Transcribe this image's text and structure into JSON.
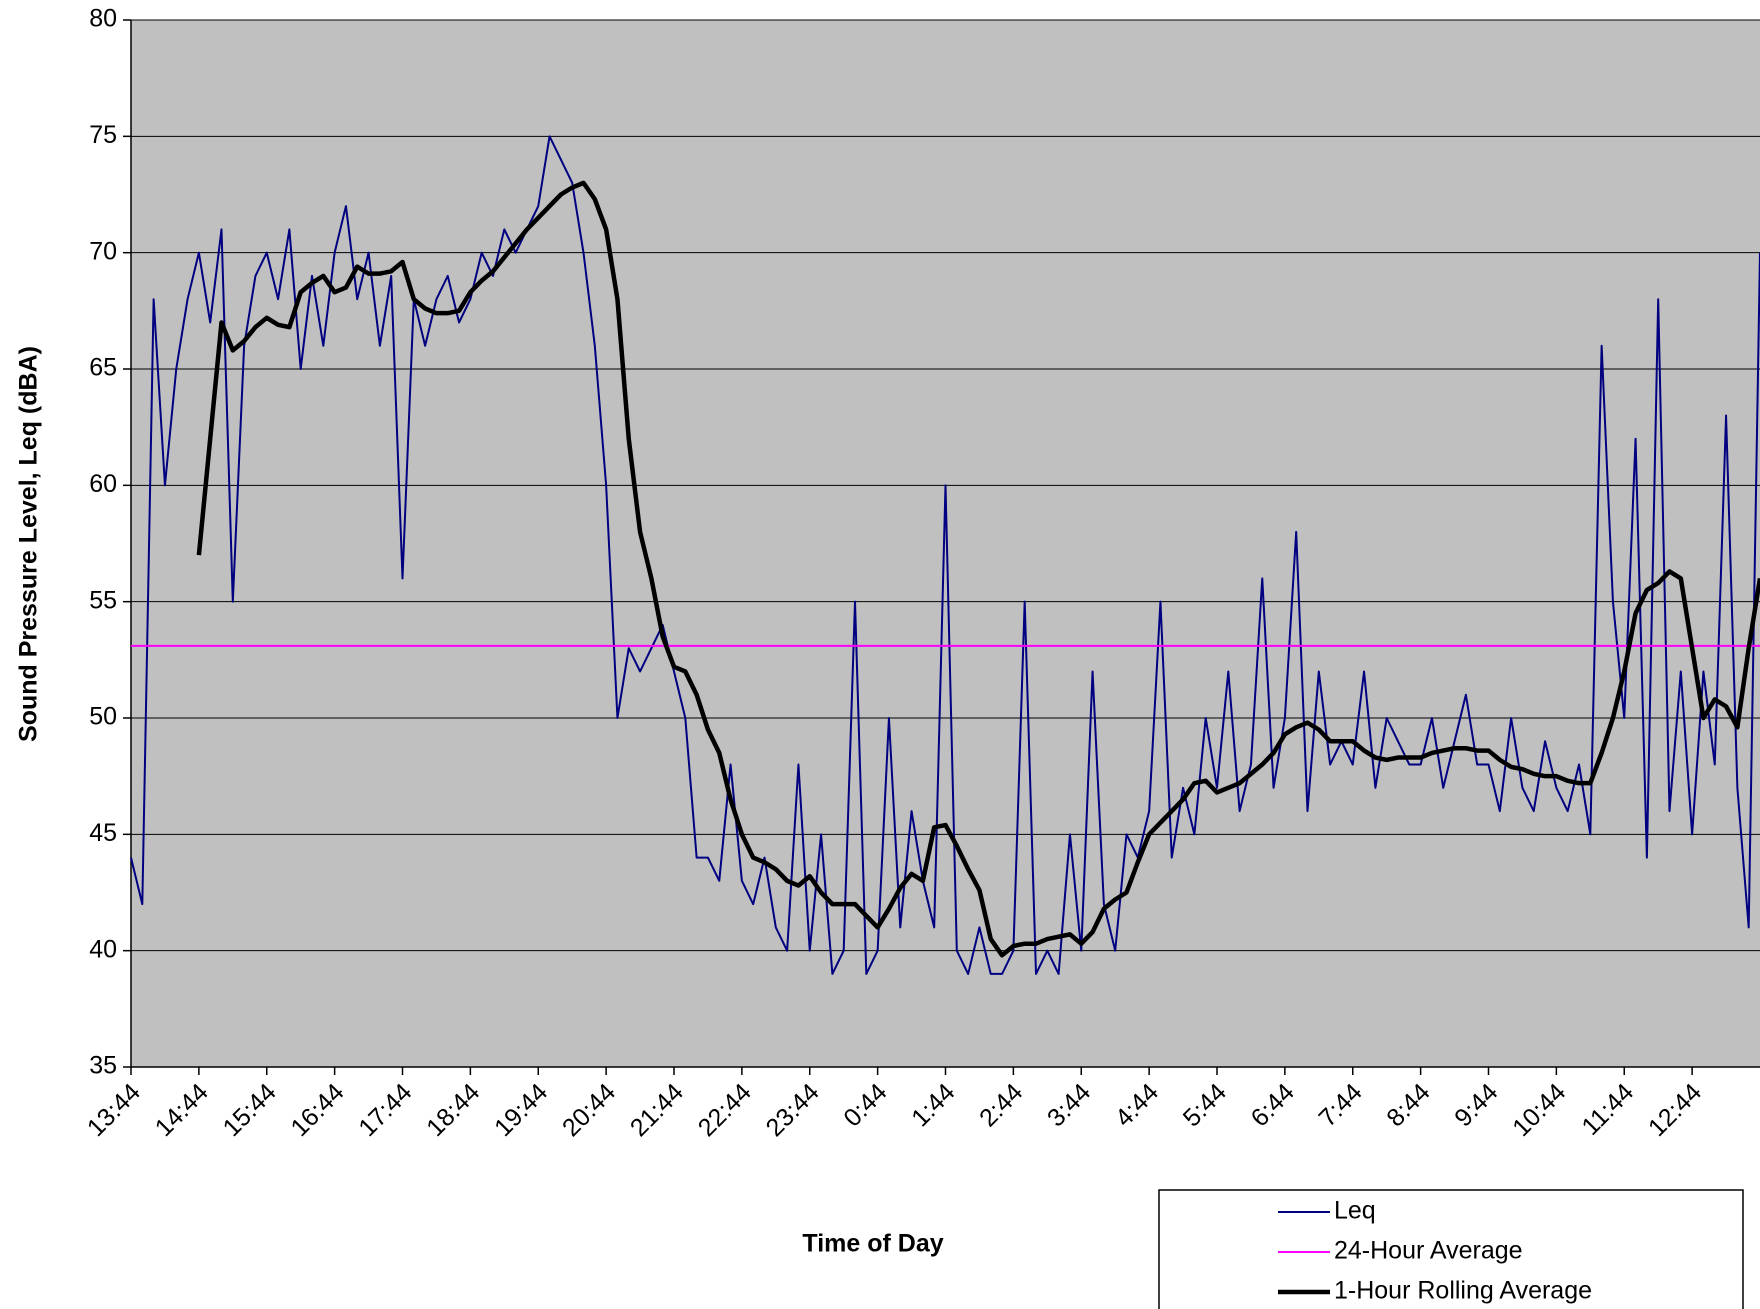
{
  "chart_data": {
    "type": "line",
    "x_label": "Time of Day",
    "y_label": "Sound Pressure Level, Leq (dBA)",
    "categories": [
      "13:44",
      null,
      null,
      null,
      null,
      null,
      "14:44",
      null,
      null,
      null,
      null,
      null,
      "15:44",
      null,
      null,
      null,
      null,
      null,
      "16:44",
      null,
      null,
      null,
      null,
      null,
      "17:44",
      null,
      null,
      null,
      null,
      null,
      "18:44",
      null,
      null,
      null,
      null,
      null,
      "19:44",
      null,
      null,
      null,
      null,
      null,
      "20:44",
      null,
      null,
      null,
      null,
      null,
      "21:44",
      null,
      null,
      null,
      null,
      null,
      "22:44",
      null,
      null,
      null,
      null,
      null,
      "23:44",
      null,
      null,
      null,
      null,
      null,
      "0:44",
      null,
      null,
      null,
      null,
      null,
      "1:44",
      null,
      null,
      null,
      null,
      null,
      "2:44",
      null,
      null,
      null,
      null,
      null,
      "3:44",
      null,
      null,
      null,
      null,
      null,
      "4:44",
      null,
      null,
      null,
      null,
      null,
      "5:44",
      null,
      null,
      null,
      null,
      null,
      "6:44",
      null,
      null,
      null,
      null,
      null,
      "7:44",
      null,
      null,
      null,
      null,
      null,
      "8:44",
      null,
      null,
      null,
      null,
      null,
      "9:44",
      null,
      null,
      null,
      null,
      null,
      "10:44",
      null,
      null,
      null,
      null,
      null,
      "11:44",
      null,
      null,
      null,
      null,
      null,
      "12:44",
      null,
      null,
      null,
      null,
      null,
      null
    ],
    "series": [
      {
        "name": "Leq",
        "color": "#000080",
        "width": 2,
        "values": [
          44,
          42,
          68,
          60,
          65,
          68,
          70,
          67,
          71,
          55,
          66,
          69,
          70,
          68,
          71,
          65,
          69,
          66,
          70,
          72,
          68,
          70,
          66,
          69,
          56,
          68,
          66,
          68,
          69,
          67,
          68,
          70,
          69,
          71,
          70,
          71,
          72,
          75,
          74,
          73,
          70,
          66,
          60,
          50,
          53,
          52,
          53,
          54,
          52,
          50,
          44,
          44,
          43,
          48,
          43,
          42,
          44,
          41,
          40,
          48,
          40,
          45,
          39,
          40,
          55,
          39,
          40,
          50,
          41,
          46,
          43,
          41,
          60,
          40,
          39,
          41,
          39,
          39,
          40,
          55,
          39,
          40,
          39,
          45,
          40,
          52,
          42,
          40,
          45,
          44,
          46,
          55,
          44,
          47,
          45,
          50,
          47,
          52,
          46,
          48,
          56,
          47,
          50,
          58,
          46,
          52,
          48,
          49,
          48,
          52,
          47,
          50,
          49,
          48,
          48,
          50,
          47,
          49,
          51,
          48,
          48,
          46,
          50,
          47,
          46,
          49,
          47,
          46,
          48,
          45,
          66,
          55,
          50,
          62,
          44,
          68,
          46,
          52,
          45,
          52,
          48,
          63,
          47,
          41,
          70
        ]
      },
      {
        "name": "24-Hour Average",
        "color": "#ff00ff",
        "width": 2,
        "value": 53.1
      },
      {
        "name": "1-Hour Rolling Average",
        "color": "#000000",
        "width": 4.5,
        "values": [
          null,
          null,
          null,
          null,
          null,
          null,
          57,
          62,
          67,
          65.8,
          66.2,
          66.8,
          67.2,
          66.9,
          66.8,
          68.3,
          68.7,
          69,
          68.3,
          68.5,
          69.4,
          69.1,
          69.1,
          69.2,
          69.6,
          68,
          67.6,
          67.4,
          67.4,
          67.5,
          68.3,
          68.8,
          69.2,
          69.8,
          70.4,
          71,
          71.5,
          72,
          72.5,
          72.8,
          73,
          72.3,
          71,
          68,
          62,
          58,
          56,
          53.5,
          52.2,
          52,
          51,
          49.5,
          48.5,
          46.5,
          45,
          44,
          43.8,
          43.5,
          43,
          42.8,
          43.2,
          42.5,
          42,
          42,
          42,
          41.5,
          41,
          41.8,
          42.7,
          43.3,
          43,
          45.3,
          45.4,
          44.5,
          43.5,
          42.6,
          40.5,
          39.8,
          40.2,
          40.3,
          40.3,
          40.5,
          40.6,
          40.7,
          40.3,
          40.8,
          41.8,
          42.2,
          42.5,
          43.8,
          45,
          45.5,
          46,
          46.5,
          47.2,
          47.3,
          46.8,
          47,
          47.2,
          47.6,
          48,
          48.5,
          49.3,
          49.6,
          49.8,
          49.5,
          49,
          49,
          49,
          48.6,
          48.3,
          48.2,
          48.3,
          48.3,
          48.3,
          48.5,
          48.6,
          48.7,
          48.7,
          48.6,
          48.6,
          48.2,
          47.9,
          47.8,
          47.6,
          47.5,
          47.5,
          47.3,
          47.2,
          47.2,
          48.5,
          50,
          52,
          54.5,
          55.5,
          55.8,
          56.3,
          56,
          53,
          50,
          50.8,
          50.5,
          49.6,
          53,
          56
        ]
      }
    ],
    "ylim": [
      35,
      80
    ],
    "yticks": [
      35,
      40,
      45,
      50,
      55,
      60,
      65,
      70,
      75,
      80
    ],
    "grid": true,
    "plot_background": "#c0c0c0",
    "legend": "bottom-right"
  }
}
